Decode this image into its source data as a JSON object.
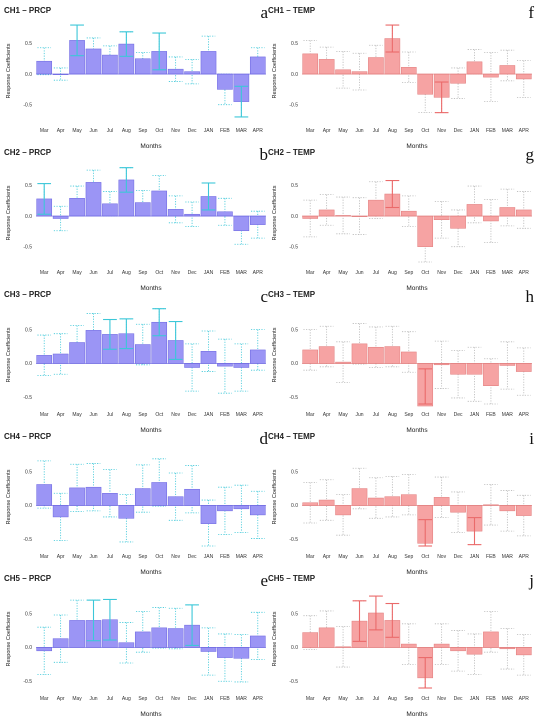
{
  "figure": {
    "xlabel": "Months",
    "ylabel": "Response Coefficients",
    "yticks": [
      "-0.5",
      "0.0",
      "0.5"
    ],
    "months": [
      "Mar",
      "Apr",
      "May",
      "Jun",
      "Jul",
      "Aug",
      "Sep",
      "Oct",
      "Nov",
      "Dec",
      "JAN",
      "FEB",
      "MAR",
      "APR"
    ]
  },
  "colors": {
    "prcp_fill": "#9b95f5",
    "prcp_edge": "#6a64e0",
    "temp_fill": "#f6a3a3",
    "temp_edge": "#e07a7a",
    "ci_cyan": "#3cc7d8",
    "ci_red": "#ea6a6a",
    "ci_gray": "#b8b8b8"
  },
  "chart_data": [
    {
      "type": "bar",
      "title": "CH1 – PRCP",
      "letter": "a",
      "ylim": [
        -0.75,
        0.85
      ],
      "categories": [
        "Mar",
        "Apr",
        "May",
        "Jun",
        "Jul",
        "Aug",
        "Sep",
        "Oct",
        "Nov",
        "Dec",
        "JAN",
        "FEB",
        "MAR",
        "APR"
      ],
      "values": [
        0.21,
        0.0,
        0.55,
        0.41,
        0.31,
        0.49,
        0.25,
        0.37,
        0.08,
        0.04,
        0.37,
        -0.25,
        -0.45,
        0.28
      ],
      "errors": [
        0.22,
        0.1,
        0.25,
        0.18,
        0.15,
        0.2,
        0.1,
        0.3,
        0.2,
        0.2,
        0.25,
        0.25,
        0.25,
        0.15
      ],
      "sig": [
        false,
        false,
        true,
        false,
        false,
        true,
        false,
        true,
        false,
        false,
        false,
        false,
        true,
        false
      ]
    },
    {
      "type": "bar",
      "title": "CH1 – TEMP",
      "letter": "f",
      "ylim": [
        -0.75,
        0.85
      ],
      "categories": [
        "Mar",
        "Apr",
        "May",
        "Jun",
        "Jul",
        "Aug",
        "Sep",
        "Oct",
        "Nov",
        "Dec",
        "JAN",
        "FEB",
        "MAR",
        "APR"
      ],
      "values": [
        0.33,
        0.24,
        0.07,
        0.04,
        0.27,
        0.58,
        0.11,
        -0.33,
        -0.38,
        -0.15,
        0.2,
        -0.05,
        0.14,
        -0.08
      ],
      "errors": [
        0.22,
        0.2,
        0.3,
        0.3,
        0.2,
        0.22,
        0.25,
        0.3,
        0.25,
        0.25,
        0.2,
        0.4,
        0.25,
        0.3
      ],
      "sig": [
        false,
        false,
        false,
        false,
        false,
        true,
        false,
        false,
        true,
        false,
        false,
        false,
        false,
        false
      ]
    },
    {
      "type": "bar",
      "title": "CH2 – PRCP",
      "letter": "b",
      "ylim": [
        -0.75,
        0.85
      ],
      "categories": [
        "Mar",
        "Apr",
        "May",
        "Jun",
        "Jul",
        "Aug",
        "Sep",
        "Oct",
        "Nov",
        "Dec",
        "JAN",
        "FEB",
        "MAR",
        "APR"
      ],
      "values": [
        0.28,
        -0.04,
        0.29,
        0.55,
        0.2,
        0.59,
        0.22,
        0.41,
        0.11,
        0.03,
        0.32,
        0.07,
        -0.24,
        -0.14
      ],
      "errors": [
        0.25,
        0.2,
        0.2,
        0.2,
        0.2,
        0.2,
        0.2,
        0.25,
        0.22,
        0.2,
        0.22,
        0.22,
        0.22,
        0.22
      ],
      "sig": [
        true,
        false,
        false,
        false,
        false,
        true,
        false,
        false,
        false,
        false,
        true,
        false,
        false,
        false
      ]
    },
    {
      "type": "bar",
      "title": "CH2 – TEMP",
      "letter": "g",
      "ylim": [
        -0.75,
        0.85
      ],
      "categories": [
        "Mar",
        "Apr",
        "May",
        "Jun",
        "Jul",
        "Aug",
        "Sep",
        "Oct",
        "Nov",
        "Dec",
        "JAN",
        "FEB",
        "MAR",
        "APR"
      ],
      "values": [
        -0.04,
        0.1,
        0.01,
        0.0,
        0.26,
        0.36,
        0.08,
        -0.5,
        -0.06,
        -0.2,
        0.19,
        -0.08,
        0.14,
        0.1
      ],
      "errors": [
        0.3,
        0.25,
        0.3,
        0.3,
        0.3,
        0.22,
        0.25,
        0.45,
        0.3,
        0.3,
        0.3,
        0.35,
        0.3,
        0.3
      ],
      "sig": [
        false,
        false,
        false,
        false,
        false,
        true,
        false,
        false,
        false,
        false,
        false,
        false,
        false,
        false
      ]
    },
    {
      "type": "bar",
      "title": "CH3 – PRCP",
      "letter": "c",
      "ylim": [
        -0.6,
        0.85
      ],
      "categories": [
        "Mar",
        "Apr",
        "May",
        "Jun",
        "Jul",
        "Aug",
        "Sep",
        "Oct",
        "Nov",
        "Dec",
        "JAN",
        "FEB",
        "MAR",
        "APR"
      ],
      "values": [
        0.12,
        0.14,
        0.31,
        0.49,
        0.43,
        0.44,
        0.28,
        0.61,
        0.34,
        -0.06,
        0.18,
        -0.04,
        -0.06,
        0.2
      ],
      "errors": [
        0.3,
        0.3,
        0.25,
        0.25,
        0.22,
        0.22,
        0.3,
        0.2,
        0.28,
        0.35,
        0.3,
        0.4,
        0.35,
        0.3
      ],
      "sig": [
        false,
        false,
        false,
        false,
        true,
        true,
        false,
        true,
        true,
        false,
        false,
        false,
        false,
        false
      ]
    },
    {
      "type": "bar",
      "title": "CH3 – TEMP",
      "letter": "h",
      "ylim": [
        -0.6,
        0.85
      ],
      "categories": [
        "Mar",
        "Apr",
        "May",
        "Jun",
        "Jul",
        "Aug",
        "Sep",
        "Oct",
        "Nov",
        "Dec",
        "JAN",
        "FEB",
        "MAR",
        "APR"
      ],
      "values": [
        0.2,
        0.25,
        0.02,
        0.29,
        0.24,
        0.25,
        0.17,
        -0.63,
        -0.02,
        -0.16,
        -0.16,
        -0.33,
        -0.03,
        -0.12
      ],
      "errors": [
        0.3,
        0.3,
        0.3,
        0.3,
        0.3,
        0.3,
        0.3,
        0.55,
        0.35,
        0.35,
        0.4,
        0.4,
        0.35,
        0.35
      ],
      "sig": [
        false,
        false,
        false,
        false,
        false,
        false,
        false,
        true,
        false,
        false,
        false,
        false,
        false,
        false
      ]
    },
    {
      "type": "bar",
      "title": "CH4 – PRCP",
      "letter": "d",
      "ylim": [
        -0.6,
        0.85
      ],
      "categories": [
        "Mar",
        "Apr",
        "May",
        "Jun",
        "Jul",
        "Aug",
        "Sep",
        "Oct",
        "Nov",
        "Dec",
        "JAN",
        "FEB",
        "MAR",
        "APR"
      ],
      "values": [
        0.31,
        -0.17,
        0.26,
        0.27,
        0.18,
        -0.19,
        0.25,
        0.34,
        0.13,
        0.24,
        -0.27,
        -0.08,
        -0.05,
        -0.14
      ],
      "errors": [
        0.35,
        0.35,
        0.35,
        0.35,
        0.35,
        0.35,
        0.35,
        0.35,
        0.35,
        0.35,
        0.35,
        0.35,
        0.35,
        0.35
      ],
      "sig": [
        false,
        false,
        false,
        false,
        false,
        false,
        false,
        false,
        false,
        false,
        false,
        false,
        false,
        false
      ]
    },
    {
      "type": "bar",
      "title": "CH4 – TEMP",
      "letter": "i",
      "ylim": [
        -0.6,
        0.85
      ],
      "categories": [
        "Mar",
        "Apr",
        "May",
        "Jun",
        "Jul",
        "Aug",
        "Sep",
        "Oct",
        "Nov",
        "Dec",
        "JAN",
        "FEB",
        "MAR",
        "APR"
      ],
      "values": [
        0.04,
        0.08,
        -0.14,
        0.25,
        0.11,
        0.13,
        0.16,
        -0.56,
        0.12,
        -0.1,
        -0.38,
        0.01,
        -0.08,
        -0.15
      ],
      "errors": [
        0.3,
        0.3,
        0.3,
        0.3,
        0.3,
        0.3,
        0.3,
        0.35,
        0.3,
        0.3,
        0.2,
        0.3,
        0.3,
        0.3
      ],
      "sig": [
        false,
        false,
        false,
        false,
        false,
        false,
        false,
        true,
        false,
        false,
        true,
        false,
        false,
        false
      ]
    },
    {
      "type": "bar",
      "title": "CH5 – PRCP",
      "letter": "e",
      "ylim": [
        -0.6,
        0.85
      ],
      "categories": [
        "Mar",
        "Apr",
        "May",
        "Jun",
        "Jul",
        "Aug",
        "Sep",
        "Oct",
        "Nov",
        "Dec",
        "JAN",
        "FEB",
        "MAR",
        "APR"
      ],
      "values": [
        -0.05,
        0.13,
        0.4,
        0.4,
        0.41,
        0.07,
        0.23,
        0.29,
        0.28,
        0.33,
        -0.06,
        -0.15,
        -0.16,
        0.17
      ],
      "errors": [
        0.35,
        0.35,
        0.3,
        0.3,
        0.3,
        0.3,
        0.3,
        0.3,
        0.3,
        0.3,
        0.35,
        0.35,
        0.35,
        0.35
      ],
      "sig": [
        false,
        false,
        false,
        true,
        true,
        false,
        false,
        false,
        false,
        true,
        false,
        false,
        false,
        false
      ]
    },
    {
      "type": "bar",
      "title": "CH5 – TEMP",
      "letter": "j",
      "ylim": [
        -0.6,
        0.85
      ],
      "categories": [
        "Mar",
        "Apr",
        "May",
        "Jun",
        "Jul",
        "Aug",
        "Sep",
        "Oct",
        "Nov",
        "Dec",
        "JAN",
        "FEB",
        "MAR",
        "APR"
      ],
      "values": [
        0.22,
        0.29,
        0.01,
        0.39,
        0.51,
        0.4,
        0.05,
        -0.45,
        0.05,
        -0.05,
        -0.1,
        0.23,
        -0.02,
        -0.11
      ],
      "errors": [
        0.25,
        0.25,
        0.3,
        0.3,
        0.25,
        0.25,
        0.3,
        0.3,
        0.3,
        0.3,
        0.3,
        0.3,
        0.3,
        0.3
      ],
      "sig": [
        false,
        false,
        false,
        true,
        true,
        true,
        false,
        true,
        false,
        false,
        false,
        false,
        false,
        false
      ]
    }
  ]
}
